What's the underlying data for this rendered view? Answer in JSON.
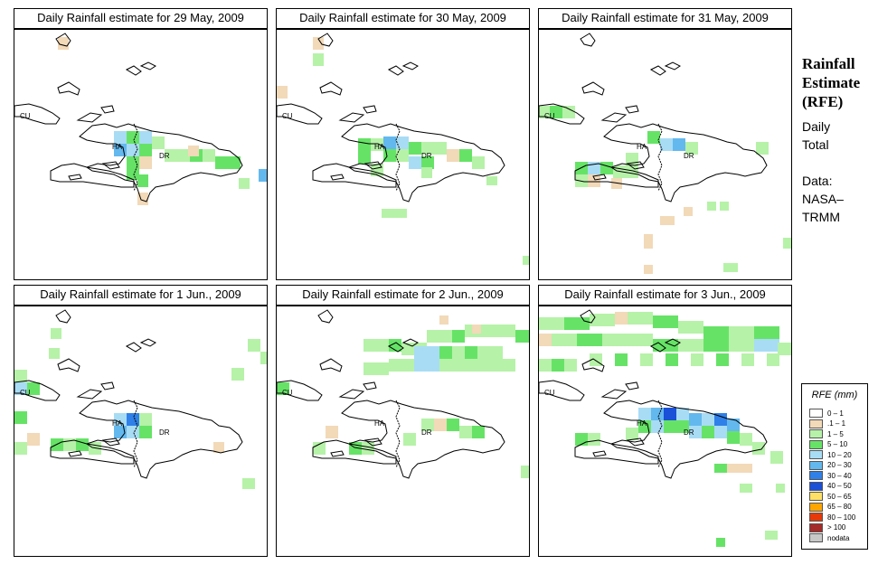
{
  "panels": [
    {
      "title": "Daily Rainfall estimate for  29 May, 2009",
      "labels": [
        "CU",
        "HA",
        "DR"
      ]
    },
    {
      "title": "Daily Rainfall estimate for  30 May, 2009",
      "labels": [
        "CU",
        "HA",
        "DR"
      ]
    },
    {
      "title": "Daily Rainfall estimate for  31 May, 2009",
      "labels": [
        "CU",
        "HA",
        "DR"
      ]
    },
    {
      "title": "Daily Rainfall estimate for  1 Jun., 2009",
      "labels": [
        "CU",
        "HA",
        "DR"
      ]
    },
    {
      "title": "Daily Rainfall estimate for  2 Jun., 2009",
      "labels": [
        "CU",
        "HA",
        "DR"
      ]
    },
    {
      "title": "Daily Rainfall estimate for  3 Jun., 2009",
      "labels": [
        "CU",
        "HA",
        "DR"
      ]
    }
  ],
  "sidebar": {
    "title_line1": "Rainfall",
    "title_line2": "Estimate",
    "title_line3": "(RFE)",
    "period_line1": "Daily",
    "period_line2": "Total",
    "source_line1": "Data:",
    "source_line2": "NASA–",
    "source_line3": "TRMM"
  },
  "legend": {
    "title": "RFE (mm)",
    "items": [
      {
        "label": "0 – 1",
        "color": "#ffffff"
      },
      {
        "label": ".1 – 1",
        "color": "#f2d9b8"
      },
      {
        "label": "1 – 5",
        "color": "#b6f2a8"
      },
      {
        "label": "5 – 10",
        "color": "#66e366"
      },
      {
        "label": "10 – 20",
        "color": "#a8dcf5"
      },
      {
        "label": "20 – 30",
        "color": "#63b8ee"
      },
      {
        "label": "30 – 40",
        "color": "#2f80e8"
      },
      {
        "label": "40 – 50",
        "color": "#1a4fd8"
      },
      {
        "label": "50 – 65",
        "color": "#ffe066"
      },
      {
        "label": "65 – 80",
        "color": "#ffa500"
      },
      {
        "label": "80 – 100",
        "color": "#e63a0a"
      },
      {
        "label": "> 100",
        "color": "#a52a2a"
      },
      {
        "label": "nodata",
        "color": "#c8c8c8"
      }
    ]
  }
}
